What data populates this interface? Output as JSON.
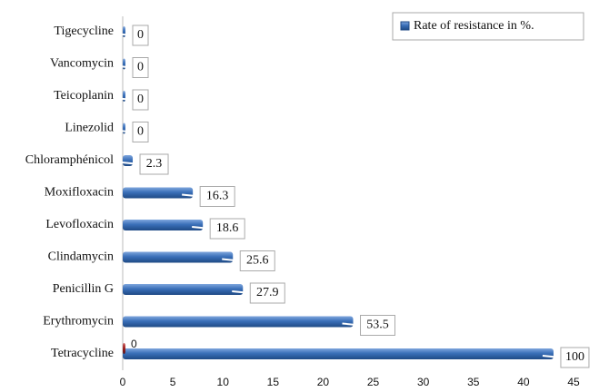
{
  "chart_data": {
    "type": "bar",
    "orientation": "horizontal",
    "categories": [
      "Tigecycline",
      "Vancomycin",
      "Teicoplanin",
      "Linezolid",
      "Chloramphénicol",
      "Moxifloxacin",
      "Levofloxacin",
      "Clindamycin",
      "Penicillin G",
      "Erythromycin",
      "Tetracycline"
    ],
    "series": [
      {
        "name": "Rate of resistance in %.",
        "color": "#3a6fb8",
        "values": [
          0,
          0,
          0,
          0,
          1,
          7,
          8,
          11,
          12,
          23,
          43
        ],
        "value_labels": [
          "0",
          "0",
          "0",
          "0",
          "2.3",
          "16.3",
          "18.6",
          "25.6",
          "27.9",
          "53.5",
          "100"
        ]
      },
      {
        "color": "#9b2222",
        "values": [
          null,
          null,
          null,
          null,
          null,
          null,
          null,
          null,
          null,
          null,
          0
        ],
        "value_labels": [
          null,
          null,
          null,
          null,
          null,
          null,
          null,
          null,
          null,
          null,
          "0"
        ]
      }
    ],
    "xlim": [
      0,
      45
    ],
    "xticks": [
      0,
      5,
      10,
      15,
      20,
      25,
      30,
      35,
      40,
      45
    ],
    "legend": "top-right"
  }
}
